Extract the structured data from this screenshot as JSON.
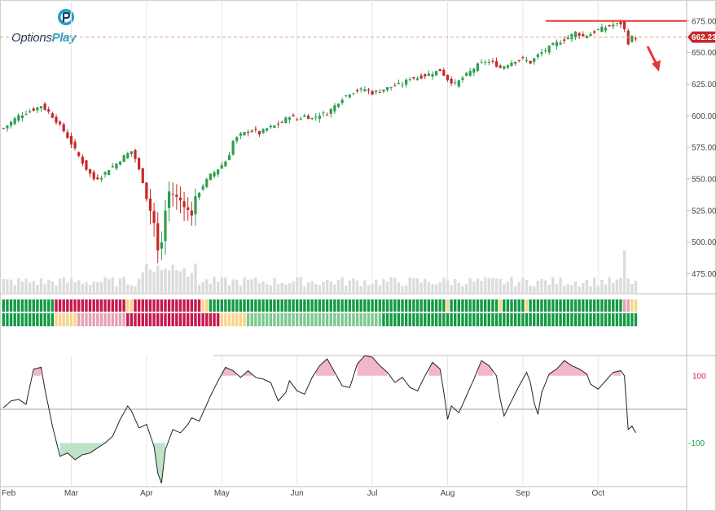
{
  "brand": {
    "name_part1": "Options",
    "name_part2": "Play"
  },
  "colors": {
    "up": "#2e9e4f",
    "down": "#c62828",
    "volume": "#dcdcdc",
    "resistance": "#e53935",
    "last_price_tag": "#c62828",
    "arrow": "#e53935",
    "strip_green": "#149a45",
    "strip_light_green": "#7cc98f",
    "strip_red": "#c8184c",
    "strip_pink": "#e7a0b6",
    "strip_yellow": "#f6d58a",
    "cci_line": "#222222",
    "cci_overbought_fill": "#f2b7c6",
    "cci_oversold_fill": "#bfe3c6",
    "cci_pos_label": "#d81b60",
    "cci_neg_label": "#1b9e4f",
    "grid": "#e6e6e6"
  },
  "chart_data": [
    {
      "type": "candlestick",
      "name": "price",
      "ylim": [
        465,
        680
      ],
      "y_ticks": [
        475,
        500,
        525,
        550,
        575,
        600,
        625,
        650,
        675
      ],
      "y_tick_labels": [
        "475.00",
        "500.00",
        "525.00",
        "550.00",
        "575.00",
        "600.00",
        "625.00",
        "650.00",
        "675.00"
      ],
      "x_tick_labels": [
        "Feb",
        "Mar",
        "Apr",
        "May",
        "Jun",
        "Jul",
        "Aug",
        "Sep",
        "Oct"
      ],
      "x_tick_bars": [
        -2,
        18,
        38,
        58,
        78,
        98,
        118,
        138,
        158
      ],
      "last_price": 662.23,
      "last_price_label": "662.23",
      "resistance_level": 675,
      "resistance_from_bar": 145,
      "anchors": [
        [
          0,
          590
        ],
        [
          4,
          600
        ],
        [
          8,
          605
        ],
        [
          10,
          608
        ],
        [
          12,
          603
        ],
        [
          14,
          596
        ],
        [
          16,
          588
        ],
        [
          18,
          578
        ],
        [
          20,
          568
        ],
        [
          22,
          558
        ],
        [
          24,
          550
        ],
        [
          26,
          552
        ],
        [
          28,
          558
        ],
        [
          30,
          562
        ],
        [
          32,
          568
        ],
        [
          34,
          572
        ],
        [
          35,
          566
        ],
        [
          37,
          548
        ],
        [
          38,
          535
        ],
        [
          40,
          515
        ],
        [
          41,
          493
        ],
        [
          42,
          500
        ],
        [
          43,
          525
        ],
        [
          44,
          540
        ],
        [
          45,
          538
        ],
        [
          47,
          533
        ],
        [
          49,
          525
        ],
        [
          50,
          522
        ],
        [
          51,
          535
        ],
        [
          53,
          545
        ],
        [
          55,
          553
        ],
        [
          57,
          558
        ],
        [
          59,
          564
        ],
        [
          60,
          570
        ],
        [
          61,
          580
        ],
        [
          63,
          585
        ],
        [
          66,
          589
        ],
        [
          68,
          586
        ],
        [
          70,
          590
        ],
        [
          72,
          592
        ],
        [
          74,
          595
        ],
        [
          76,
          600
        ],
        [
          78,
          597
        ],
        [
          80,
          600
        ],
        [
          82,
          598
        ],
        [
          84,
          601
        ],
        [
          86,
          602
        ],
        [
          88,
          608
        ],
        [
          90,
          614
        ],
        [
          92,
          618
        ],
        [
          94,
          620
        ],
        [
          96,
          621
        ],
        [
          98,
          618
        ],
        [
          100,
          620
        ],
        [
          102,
          622
        ],
        [
          104,
          624
        ],
        [
          106,
          625
        ],
        [
          108,
          630
        ],
        [
          110,
          630
        ],
        [
          112,
          632
        ],
        [
          114,
          634
        ],
        [
          116,
          636
        ],
        [
          118,
          629
        ],
        [
          120,
          625
        ],
        [
          122,
          630
        ],
        [
          124,
          635
        ],
        [
          126,
          640
        ],
        [
          128,
          643
        ],
        [
          130,
          642
        ],
        [
          132,
          638
        ],
        [
          134,
          641
        ],
        [
          136,
          644
        ],
        [
          138,
          645
        ],
        [
          140,
          642
        ],
        [
          142,
          648
        ],
        [
          144,
          652
        ],
        [
          146,
          656
        ],
        [
          148,
          659
        ],
        [
          150,
          662
        ],
        [
          152,
          666
        ],
        [
          154,
          663
        ],
        [
          156,
          665
        ],
        [
          158,
          668
        ],
        [
          160,
          670
        ],
        [
          162,
          672
        ],
        [
          164,
          673
        ],
        [
          165,
          668
        ],
        [
          166,
          658
        ],
        [
          167,
          662
        ],
        [
          168,
          662.23
        ]
      ],
      "candles": []
    },
    {
      "type": "bar",
      "name": "volume",
      "note_series": "volume bars under price (relative)",
      "base_level": 0.25
    },
    {
      "type": "heatmap",
      "name": "signal_strip",
      "rows": 2,
      "row1_segments": [
        {
          "from": 0,
          "to": 13,
          "state": "green"
        },
        {
          "from": 14,
          "to": 32,
          "state": "red"
        },
        {
          "from": 33,
          "to": 34,
          "state": "yellow"
        },
        {
          "from": 35,
          "to": 52,
          "state": "red"
        },
        {
          "from": 53,
          "to": 54,
          "state": "yellow"
        },
        {
          "from": 55,
          "to": 117,
          "state": "green"
        },
        {
          "from": 118,
          "to": 118,
          "state": "yellow"
        },
        {
          "from": 119,
          "to": 131,
          "state": "green"
        },
        {
          "from": 132,
          "to": 132,
          "state": "yellow"
        },
        {
          "from": 133,
          "to": 138,
          "state": "green"
        },
        {
          "from": 139,
          "to": 139,
          "state": "yellow"
        },
        {
          "from": 140,
          "to": 164,
          "state": "green"
        },
        {
          "from": 165,
          "to": 166,
          "state": "pink"
        },
        {
          "from": 167,
          "to": 168,
          "state": "yellow"
        }
      ],
      "row2_segments": [
        {
          "from": 0,
          "to": 13,
          "state": "green"
        },
        {
          "from": 14,
          "to": 19,
          "state": "yellow"
        },
        {
          "from": 20,
          "to": 32,
          "state": "pink"
        },
        {
          "from": 33,
          "to": 57,
          "state": "red"
        },
        {
          "from": 58,
          "to": 64,
          "state": "yellow"
        },
        {
          "from": 65,
          "to": 100,
          "state": "light_green"
        },
        {
          "from": 101,
          "to": 168,
          "state": "green"
        }
      ]
    },
    {
      "type": "line",
      "name": "cci",
      "ylim": [
        -230,
        160
      ],
      "y_ticks": [
        100,
        -100
      ],
      "y_tick_labels": [
        "100",
        "-100"
      ],
      "overbought": 100,
      "oversold": -100,
      "anchors": [
        [
          0,
          5
        ],
        [
          2,
          25
        ],
        [
          4,
          30
        ],
        [
          6,
          15
        ],
        [
          8,
          120
        ],
        [
          10,
          125
        ],
        [
          11,
          60
        ],
        [
          13,
          -50
        ],
        [
          15,
          -140
        ],
        [
          17,
          -130
        ],
        [
          19,
          -150
        ],
        [
          21,
          -135
        ],
        [
          23,
          -130
        ],
        [
          25,
          -115
        ],
        [
          27,
          -100
        ],
        [
          29,
          -80
        ],
        [
          31,
          -30
        ],
        [
          33,
          10
        ],
        [
          34,
          -5
        ],
        [
          36,
          -55
        ],
        [
          38,
          -45
        ],
        [
          40,
          -110
        ],
        [
          41,
          -190
        ],
        [
          42,
          -220
        ],
        [
          43,
          -120
        ],
        [
          45,
          -60
        ],
        [
          47,
          -70
        ],
        [
          49,
          -45
        ],
        [
          50,
          -25
        ],
        [
          52,
          -35
        ],
        [
          53,
          -10
        ],
        [
          55,
          40
        ],
        [
          57,
          85
        ],
        [
          59,
          125
        ],
        [
          61,
          115
        ],
        [
          63,
          95
        ],
        [
          65,
          115
        ],
        [
          67,
          95
        ],
        [
          69,
          90
        ],
        [
          71,
          80
        ],
        [
          73,
          25
        ],
        [
          75,
          50
        ],
        [
          76,
          85
        ],
        [
          78,
          55
        ],
        [
          80,
          45
        ],
        [
          82,
          95
        ],
        [
          84,
          130
        ],
        [
          86,
          150
        ],
        [
          88,
          110
        ],
        [
          90,
          70
        ],
        [
          92,
          65
        ],
        [
          94,
          135
        ],
        [
          96,
          160
        ],
        [
          98,
          155
        ],
        [
          100,
          130
        ],
        [
          102,
          110
        ],
        [
          104,
          80
        ],
        [
          106,
          95
        ],
        [
          108,
          65
        ],
        [
          110,
          55
        ],
        [
          112,
          100
        ],
        [
          114,
          140
        ],
        [
          116,
          120
        ],
        [
          117,
          50
        ],
        [
          118,
          -30
        ],
        [
          119,
          10
        ],
        [
          121,
          -10
        ],
        [
          123,
          40
        ],
        [
          125,
          90
        ],
        [
          127,
          145
        ],
        [
          129,
          130
        ],
        [
          131,
          100
        ],
        [
          132,
          30
        ],
        [
          133,
          -20
        ],
        [
          135,
          25
        ],
        [
          137,
          70
        ],
        [
          139,
          110
        ],
        [
          140,
          80
        ],
        [
          141,
          20
        ],
        [
          142,
          -15
        ],
        [
          143,
          50
        ],
        [
          145,
          105
        ],
        [
          147,
          120
        ],
        [
          149,
          145
        ],
        [
          151,
          130
        ],
        [
          153,
          120
        ],
        [
          155,
          105
        ],
        [
          156,
          75
        ],
        [
          158,
          60
        ],
        [
          160,
          85
        ],
        [
          162,
          110
        ],
        [
          164,
          115
        ],
        [
          165,
          100
        ],
        [
          166,
          -60
        ],
        [
          167,
          -50
        ],
        [
          168,
          -70
        ]
      ],
      "values": []
    }
  ]
}
